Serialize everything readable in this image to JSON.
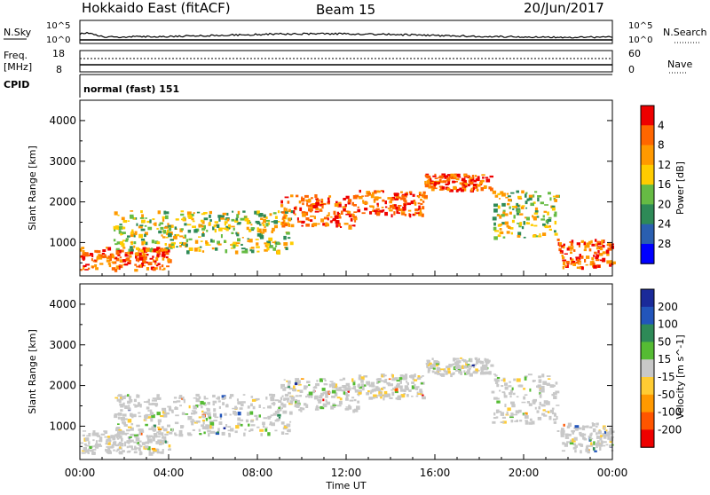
{
  "header": {
    "station": "Hokkaido East (fitACF)",
    "beam": "Beam 15",
    "date": "20/Jun/2017"
  },
  "aux_panels": {
    "nsky_label": "N.Sky",
    "nsearch_label": "N.Search",
    "freq_label_1": "Freq.",
    "freq_label_2": "[MHz]",
    "nave_label": "Nave",
    "cpid_label": "CPID",
    "cpid_text": "normal (fast) 151",
    "noise_ticks_left": [
      "10^5",
      "10^0"
    ],
    "noise_ticks_right": [
      "10^5",
      "10^0"
    ],
    "freq_ticks": [
      "18",
      "8"
    ],
    "nave_ticks": [
      "60",
      "0"
    ]
  },
  "chart_data": [
    {
      "type": "heatmap",
      "panel": "power",
      "xlabel": "Time UT",
      "ylabel": "Slant Range [km]",
      "x_ticks": [
        "00:00",
        "04:00",
        "08:00",
        "12:00",
        "16:00",
        "20:00",
        "00:00"
      ],
      "y_ticks": [
        1000,
        2000,
        3000,
        4000
      ],
      "xlim_hours": [
        0,
        24
      ],
      "ylim_km": [
        180,
        4500
      ],
      "colorbar": {
        "label": "Power [dB]",
        "ticks": [
          4,
          8,
          12,
          16,
          20,
          24,
          28
        ],
        "colors": [
          "#0000ff",
          "#2a5fb0",
          "#2e8a57",
          "#66bb44",
          "#ffcc00",
          "#ff9900",
          "#ff6600",
          "#ee0000"
        ]
      },
      "echo_bands": [
        {
          "t0": 0.0,
          "t1": 4.0,
          "r0": 350,
          "r1": 900,
          "level": "high"
        },
        {
          "t0": 1.5,
          "t1": 9.5,
          "r0": 800,
          "r1": 1800,
          "level": "medium"
        },
        {
          "t0": 9.0,
          "t1": 12.5,
          "r0": 1400,
          "r1": 2200,
          "level": "high"
        },
        {
          "t0": 12.5,
          "t1": 15.5,
          "r0": 1700,
          "r1": 2300,
          "level": "high"
        },
        {
          "t0": 15.5,
          "t1": 18.5,
          "r0": 2300,
          "r1": 2700,
          "level": "high"
        },
        {
          "t0": 18.5,
          "t1": 21.5,
          "r0": 1100,
          "r1": 2300,
          "level": "medium"
        },
        {
          "t0": 21.5,
          "t1": 24.0,
          "r0": 400,
          "r1": 1100,
          "level": "high"
        }
      ]
    },
    {
      "type": "heatmap",
      "panel": "velocity",
      "xlabel": "Time UT",
      "ylabel": "Slant Range [km]",
      "x_ticks": [
        "00:00",
        "04:00",
        "08:00",
        "12:00",
        "16:00",
        "20:00",
        "00:00"
      ],
      "y_ticks": [
        1000,
        2000,
        3000,
        4000
      ],
      "xlim_hours": [
        0,
        24
      ],
      "ylim_km": [
        180,
        4500
      ],
      "colorbar": {
        "label": "Velocity [m s^-1]",
        "ticks": [
          200,
          100,
          50,
          15,
          -15,
          -50,
          -100,
          -200
        ],
        "colors": [
          "#1a2a99",
          "#2255bb",
          "#2e8a57",
          "#55bb33",
          "#c8c8c8",
          "#ffcc33",
          "#ff9900",
          "#ff5500",
          "#ee0000"
        ]
      },
      "echo_bands": [
        {
          "t0": 0.0,
          "t1": 4.0,
          "r0": 350,
          "r1": 900,
          "level": "ground"
        },
        {
          "t0": 1.5,
          "t1": 9.5,
          "r0": 800,
          "r1": 1800,
          "level": "ground"
        },
        {
          "t0": 9.0,
          "t1": 12.5,
          "r0": 1400,
          "r1": 2200,
          "level": "ground"
        },
        {
          "t0": 12.5,
          "t1": 15.5,
          "r0": 1700,
          "r1": 2300,
          "level": "ground"
        },
        {
          "t0": 15.5,
          "t1": 18.5,
          "r0": 2300,
          "r1": 2700,
          "level": "ground"
        },
        {
          "t0": 18.5,
          "t1": 21.5,
          "r0": 1100,
          "r1": 2300,
          "level": "ground"
        },
        {
          "t0": 21.5,
          "t1": 24.0,
          "r0": 400,
          "r1": 1100,
          "level": "ground"
        }
      ]
    }
  ]
}
